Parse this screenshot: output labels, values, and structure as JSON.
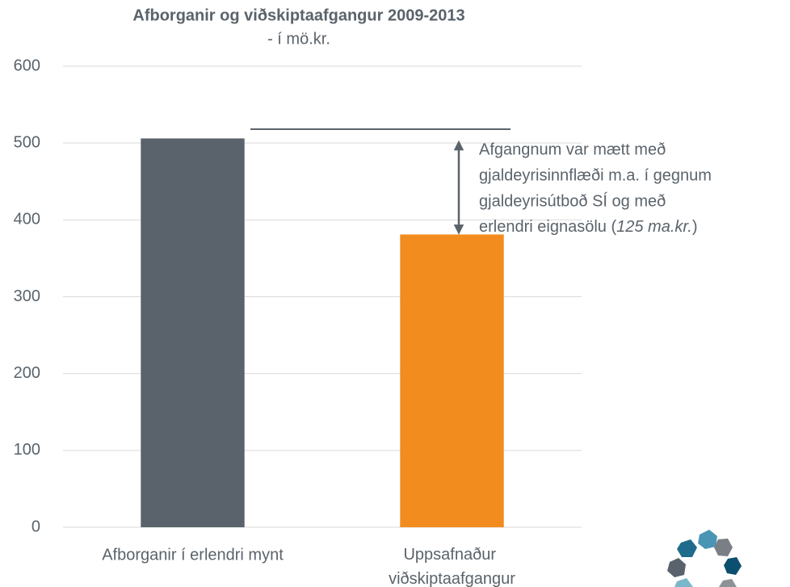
{
  "chart_data": {
    "type": "bar",
    "title": "Afborganir og viðskiptaafgangur 2009-2013",
    "subtitle": "- í mö.kr.",
    "categories": [
      "Afborganir í erlendri mynt",
      "Uppsafnaður viðskiptaafgangur"
    ],
    "values": [
      506,
      381
    ],
    "colors": [
      "#5a636b",
      "#f28c1e"
    ],
    "ylim": [
      0,
      600
    ],
    "yticks": [
      0,
      100,
      200,
      300,
      400,
      500,
      600
    ],
    "grid": true,
    "reference_line": 518,
    "annotation": {
      "lines": [
        "Afgangnum var mætt með",
        "gjaldeyrisinnflæði m.a. í gegnum",
        "gjaldeyrisútboð SÍ og með"
      ],
      "last_line": [
        "erlendri eignasölu (",
        "125 ma.kr.",
        ")"
      ]
    }
  }
}
